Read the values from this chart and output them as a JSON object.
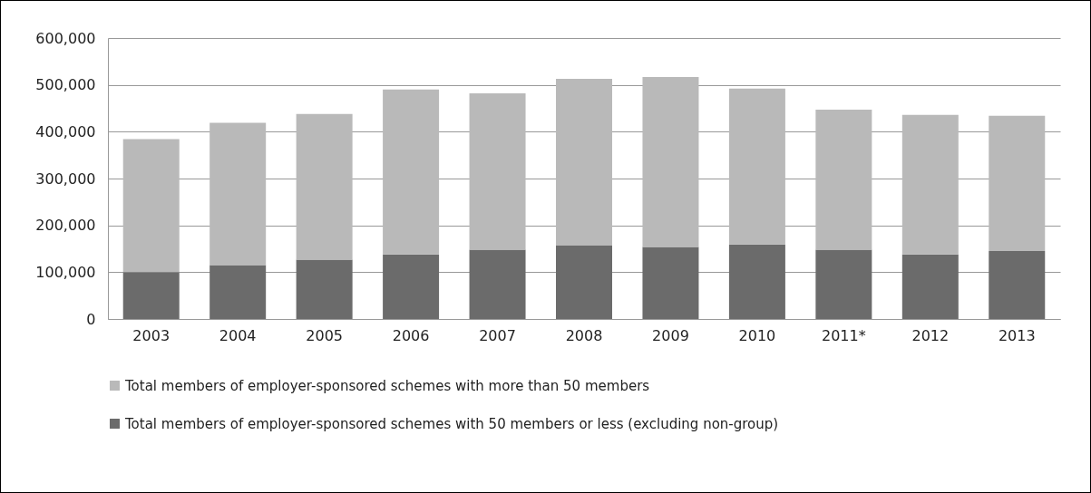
{
  "chart_data": {
    "type": "bar",
    "stacked": true,
    "categories": [
      "2003",
      "2004",
      "2005",
      "2006",
      "2007",
      "2008",
      "2009",
      "2010",
      "2011*",
      "2012",
      "2013"
    ],
    "series": [
      {
        "name": "Total members of employer-sponsored schemes with 50 members or less (excluding non-group)",
        "color": "#6b6b6b",
        "values": [
          100000,
          115000,
          127000,
          138000,
          148000,
          157000,
          154000,
          159000,
          148000,
          138000,
          145000
        ]
      },
      {
        "name": "Total members of employer-sponsored schemes with more than 50 members",
        "color": "#b9b9b9",
        "values": [
          284000,
          304000,
          311000,
          352000,
          334000,
          356000,
          363000,
          333000,
          299000,
          298000,
          289000
        ]
      }
    ],
    "ylim": [
      0,
      600000
    ],
    "yticks": [
      0,
      {
        "value": 100000,
        "label": "100,000"
      },
      {
        "value": 200000,
        "label": "200,000"
      },
      {
        "value": 300000,
        "label": "300,000"
      },
      {
        "value": 400000,
        "label": "400,000"
      },
      {
        "value": 500000,
        "label": "500,000"
      },
      {
        "value": 600000,
        "label": "600,000"
      }
    ],
    "grid": "y",
    "legend": "bottom"
  }
}
